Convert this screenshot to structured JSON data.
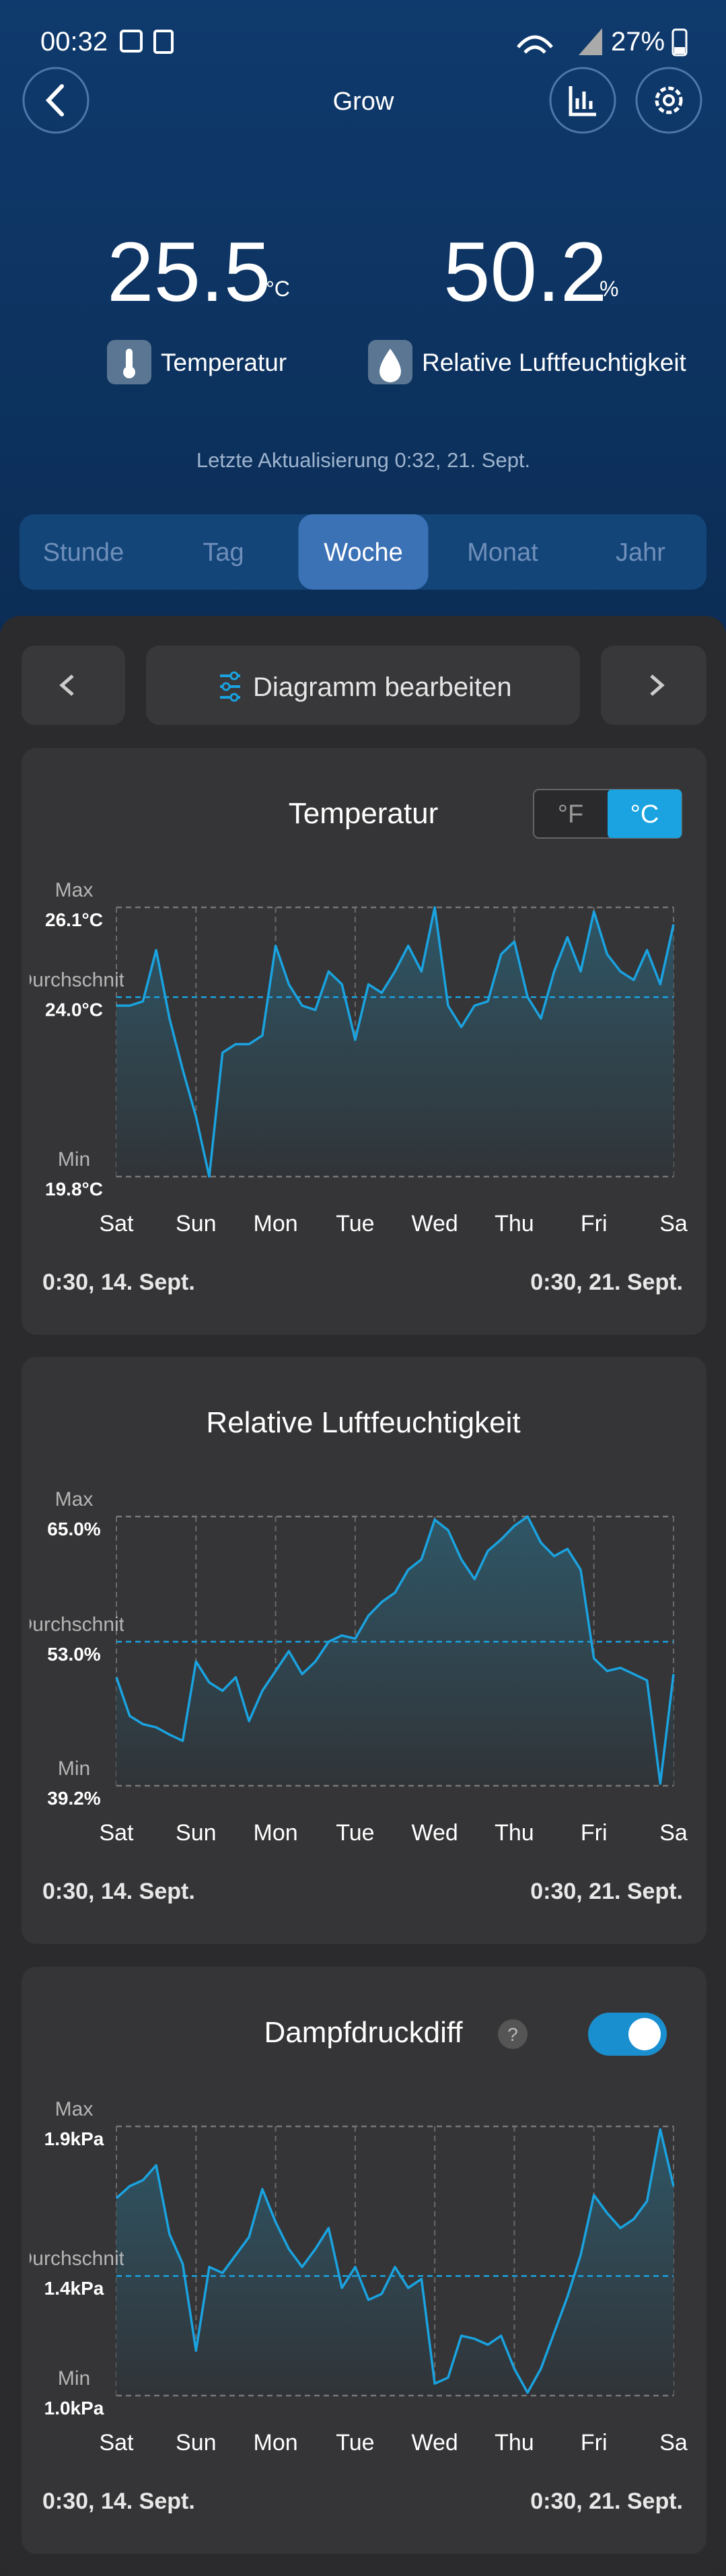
{
  "status_bar": {
    "time": "00:32",
    "battery": "27%"
  },
  "header": {
    "title": "Grow"
  },
  "readings": [
    {
      "value": 25.5,
      "unit": "°C",
      "label": "Temperatur"
    },
    {
      "value": 50.2,
      "unit": "%",
      "label": "Relative Luftfeuchtigkeit"
    }
  ],
  "last_update": "Letzte Aktualisierung 0:32,  21. Sept.",
  "tabs": [
    "Stunde",
    "Tag",
    "Woche",
    "Monat",
    "Jahr"
  ],
  "selected_tab": 2,
  "edit_button": "Diagramm bearbeiten",
  "unit_toggle": {
    "options": [
      "°F",
      "°C"
    ],
    "selected": 1
  },
  "charts": [
    {
      "type": "line",
      "title": "Temperatur",
      "color": "#1aa3e0",
      "tick_titles": [
        "Max",
        "Durchschnitt",
        "Min"
      ],
      "yticks": [
        {
          "value": 26.1,
          "label": "26.1°C"
        },
        {
          "value": 24.0,
          "label": "24.0°C"
        },
        {
          "value": 19.8,
          "label": "19.8°C"
        }
      ],
      "ylim": [
        19.8,
        26.1
      ],
      "categories": [
        "Sat",
        "Sun",
        "Mon",
        "Tue",
        "Wed",
        "Thu",
        "Fri",
        "Sa"
      ],
      "start": "0:30,  14. Sept.",
      "end": "0:30,  21. Sept.",
      "values": [
        23.8,
        23.8,
        23.9,
        25.1,
        23.5,
        22.3,
        21.2,
        19.8,
        22.7,
        22.9,
        22.9,
        23.1,
        25.2,
        24.3,
        23.8,
        23.7,
        24.6,
        24.3,
        23.0,
        24.3,
        24.1,
        24.6,
        25.2,
        24.6,
        26.1,
        23.8,
        23.3,
        23.8,
        23.9,
        25.0,
        25.3,
        24.0,
        23.5,
        24.6,
        25.4,
        24.6,
        26.0,
        25.0,
        24.6,
        24.4,
        25.1,
        24.3,
        25.7
      ]
    },
    {
      "type": "line",
      "title": "Relative Luftfeuchtigkeit",
      "color": "#1aa3e0",
      "tick_titles": [
        "Max",
        "Durchschnitt",
        "Min"
      ],
      "yticks": [
        {
          "value": 65.0,
          "label": "65.0%"
        },
        {
          "value": 53.0,
          "label": "53.0%"
        },
        {
          "value": 39.2,
          "label": "39.2%"
        }
      ],
      "ylim": [
        39.2,
        65.0
      ],
      "categories": [
        "Sat",
        "Sun",
        "Mon",
        "Tue",
        "Wed",
        "Thu",
        "Fri",
        "Sa"
      ],
      "start": "0:30,  14. Sept.",
      "end": "0:30,  21. Sept.",
      "values": [
        49.6,
        45.9,
        45.1,
        44.8,
        44.1,
        43.5,
        51.1,
        49.1,
        48.3,
        49.6,
        45.4,
        48.3,
        50.2,
        52.1,
        49.9,
        51.1,
        53.0,
        53.6,
        53.3,
        55.5,
        56.8,
        57.7,
        59.9,
        60.9,
        64.7,
        63.7,
        60.9,
        59.0,
        61.7,
        62.8,
        64.1,
        65.0,
        62.5,
        61.2,
        61.9,
        59.9,
        51.4,
        50.2,
        50.5,
        49.9,
        49.3,
        39.4,
        49.9
      ]
    },
    {
      "type": "line",
      "title": "Dampfdruckdiff",
      "color": "#1aa3e0",
      "switch": true,
      "tick_titles": [
        "Max",
        "Durchschnitt",
        "Min"
      ],
      "yticks": [
        {
          "value": 1.9,
          "label": "1.9kPa"
        },
        {
          "value": 1.4,
          "label": "1.4kPa"
        },
        {
          "value": 1.0,
          "label": "1.0kPa"
        }
      ],
      "ylim": [
        1.0,
        1.9
      ],
      "categories": [
        "Sat",
        "Sun",
        "Mon",
        "Tue",
        "Wed",
        "Thu",
        "Fri",
        "Sa"
      ],
      "start": "0:30,  14. Sept.",
      "end": "0:30,  21. Sept.",
      "values": [
        1.66,
        1.7,
        1.72,
        1.77,
        1.54,
        1.44,
        1.15,
        1.43,
        1.41,
        1.47,
        1.53,
        1.69,
        1.58,
        1.49,
        1.43,
        1.49,
        1.56,
        1.36,
        1.43,
        1.32,
        1.34,
        1.43,
        1.36,
        1.39,
        1.04,
        1.06,
        1.2,
        1.19,
        1.17,
        1.2,
        1.09,
        1.01,
        1.09,
        1.21,
        1.33,
        1.47,
        1.67,
        1.61,
        1.56,
        1.59,
        1.65,
        1.89,
        1.7
      ]
    }
  ]
}
